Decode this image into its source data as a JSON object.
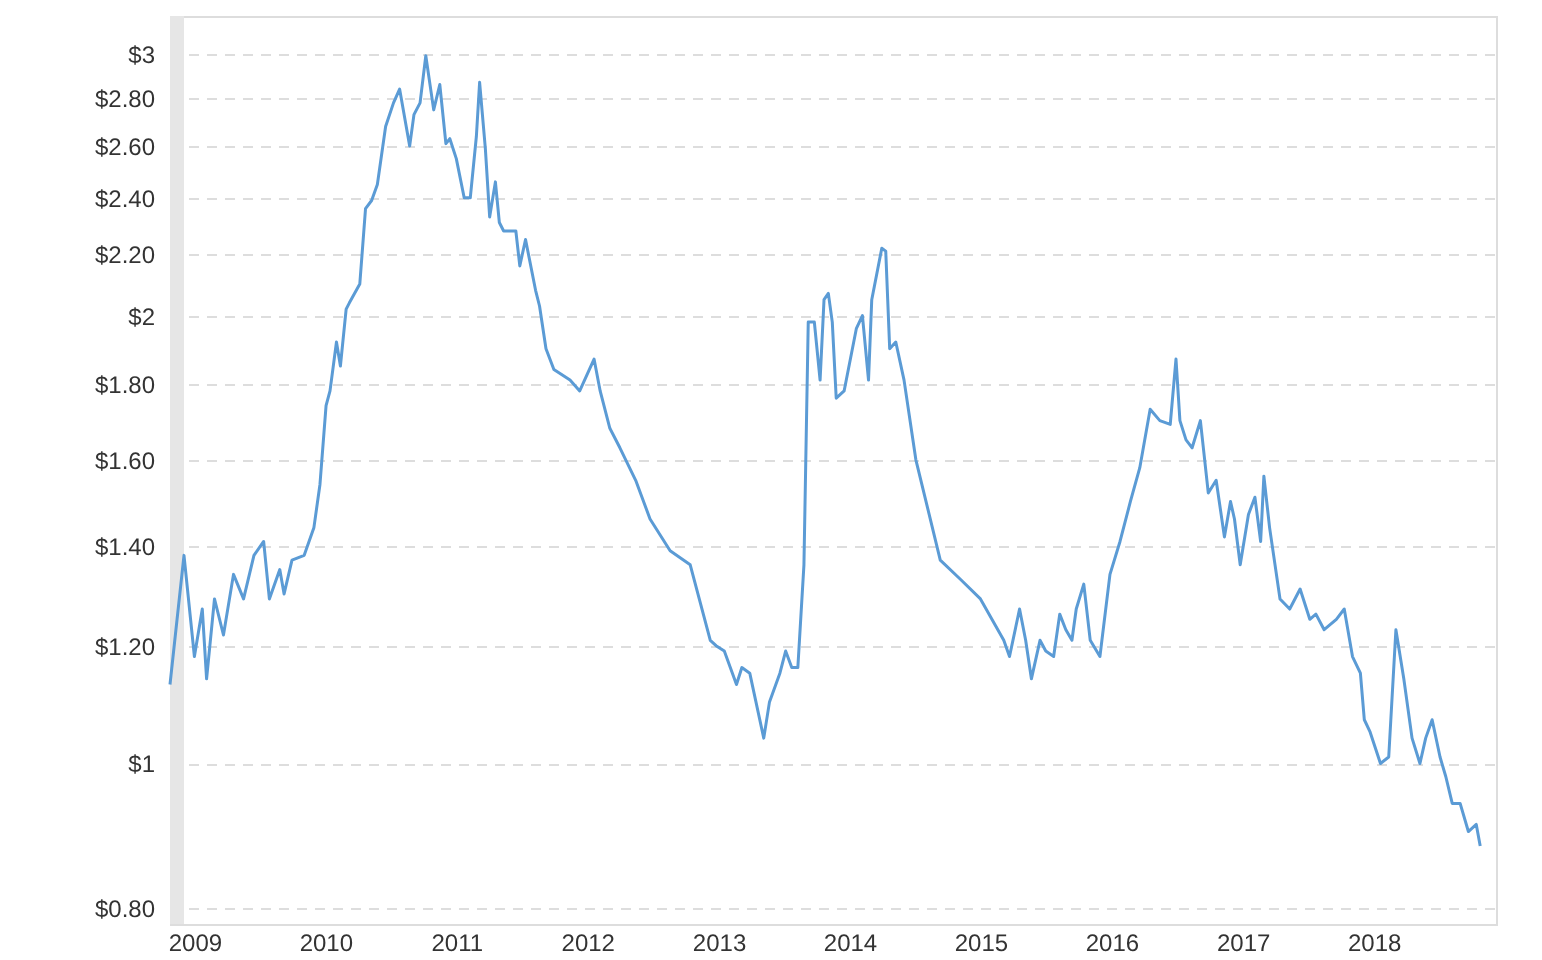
{
  "chart_data": {
    "type": "line",
    "grid": "y",
    "log": "y",
    "line_style": "solid",
    "marker": "none",
    "xlim": [
      "2008-10-25",
      "2018-12-08"
    ],
    "xticks": [
      {
        "value": "2009",
        "label": "2009"
      },
      {
        "value": "2010",
        "label": "2010"
      },
      {
        "value": "2011",
        "label": "2011"
      },
      {
        "value": "2012",
        "label": "2012"
      },
      {
        "value": "2013",
        "label": "2013"
      },
      {
        "value": "2014",
        "label": "2014"
      },
      {
        "value": "2015",
        "label": "2015"
      },
      {
        "value": "2016",
        "label": "2016"
      },
      {
        "value": "2017",
        "label": "2017"
      },
      {
        "value": "2018",
        "label": "2018"
      }
    ],
    "ylim": [
      0.78,
      3.18
    ],
    "yticks": [
      {
        "value": 0.8,
        "label": "$0.80"
      },
      {
        "value": 1,
        "label": "$1"
      },
      {
        "value": 1.2,
        "label": "$1.20"
      },
      {
        "value": 1.4,
        "label": "$1.40"
      },
      {
        "value": 1.6,
        "label": "$1.60"
      },
      {
        "value": 1.8,
        "label": "$1.80"
      },
      {
        "value": 2,
        "label": "$2"
      },
      {
        "value": 2.2,
        "label": "$2.20"
      },
      {
        "value": 2.4,
        "label": "$2.40"
      },
      {
        "value": 2.6,
        "label": "$2.60"
      },
      {
        "value": 2.8,
        "label": "$2.80"
      },
      {
        "value": 3,
        "label": "$3"
      }
    ],
    "bands": [
      {
        "axis": "x",
        "from": "2008-10-25",
        "to": "2008-12-03",
        "color": "#e6e6e6"
      }
    ],
    "x": [
      "2008-10-25",
      "2008-12-03",
      "2009-01-01",
      "2009-01-23",
      "2009-02-04",
      "2009-02-26",
      "2009-03-23",
      "2009-04-20",
      "2009-05-18",
      "2009-06-16",
      "2009-07-13",
      "2009-07-29",
      "2009-08-27",
      "2009-09-08",
      "2009-09-30",
      "2009-11-03",
      "2009-11-30",
      "2009-12-17",
      "2010-01-03",
      "2010-01-14",
      "2010-02-01",
      "2010-02-12",
      "2010-02-28",
      "2010-03-09",
      "2010-04-07",
      "2010-04-23",
      "2010-05-10",
      "2010-05-26",
      "2010-06-18",
      "2010-07-10",
      "2010-07-27",
      "2010-08-24",
      "2010-09-05",
      "2010-09-22",
      "2010-10-08",
      "2010-10-30",
      "2010-11-16",
      "2010-12-03",
      "2010-12-14",
      "2011-01-01",
      "2011-01-23",
      "2011-02-09",
      "2011-02-26",
      "2011-03-07",
      "2011-03-23",
      "2011-04-04",
      "2011-04-20",
      "2011-05-01",
      "2011-05-13",
      "2011-06-16",
      "2011-06-27",
      "2011-07-13",
      "2011-08-10",
      "2011-08-21",
      "2011-09-08",
      "2011-09-30",
      "2011-11-14",
      "2011-12-11",
      "2012-01-20",
      "2012-02-06",
      "2012-03-04",
      "2012-04-01",
      "2012-05-15",
      "2012-06-24",
      "2012-08-19",
      "2012-10-14",
      "2012-12-09",
      "2012-12-25",
      "2013-01-17",
      "2013-02-20",
      "2013-03-07",
      "2013-03-29",
      "2013-05-07",
      "2013-05-23",
      "2013-06-21",
      "2013-07-07",
      "2013-07-24",
      "2013-08-10",
      "2013-08-27",
      "2013-09-08",
      "2013-09-25",
      "2013-10-11",
      "2013-10-22",
      "2013-11-03",
      "2013-11-14",
      "2013-11-25",
      "2013-12-17",
      "2014-01-20",
      "2014-02-06",
      "2014-02-23",
      "2014-03-04",
      "2014-04-01",
      "2014-04-12",
      "2014-04-23",
      "2014-05-10",
      "2014-06-02",
      "2014-07-05",
      "2014-09-11",
      "2014-11-06",
      "2015-01-01",
      "2015-03-07",
      "2015-03-23",
      "2015-04-20",
      "2015-05-07",
      "2015-05-23",
      "2015-06-16",
      "2015-07-02",
      "2015-07-24",
      "2015-08-10",
      "2015-08-27",
      "2015-09-13",
      "2015-09-25",
      "2015-10-16",
      "2015-11-03",
      "2015-11-30",
      "2015-12-28",
      "2016-01-25",
      "2016-02-23",
      "2016-03-20",
      "2016-04-18",
      "2016-05-15",
      "2016-06-13",
      "2016-06-29",
      "2016-07-10",
      "2016-07-27",
      "2016-08-13",
      "2016-09-05",
      "2016-09-27",
      "2016-10-19",
      "2016-11-11",
      "2016-11-28",
      "2016-12-09",
      "2016-12-25",
      "2017-01-17",
      "2017-02-04",
      "2017-02-20",
      "2017-03-01",
      "2017-03-17",
      "2017-04-15",
      "2017-05-12",
      "2017-06-10",
      "2017-07-07",
      "2017-07-24",
      "2017-08-16",
      "2017-09-19",
      "2017-10-11",
      "2017-11-03",
      "2017-11-25",
      "2017-12-06",
      "2017-12-22",
      "2018-01-20",
      "2018-02-12",
      "2018-03-04",
      "2018-03-26",
      "2018-04-18",
      "2018-05-10",
      "2018-05-26",
      "2018-06-13",
      "2018-07-05",
      "2018-07-21",
      "2018-08-08",
      "2018-08-30",
      "2018-09-22",
      "2018-10-14",
      "2018-10-25"
    ],
    "series": [
      {
        "color": "#5b9bd5",
        "values": [
          1.13,
          1.38,
          1.18,
          1.27,
          1.14,
          1.29,
          1.22,
          1.34,
          1.29,
          1.38,
          1.41,
          1.29,
          1.35,
          1.3,
          1.37,
          1.38,
          1.44,
          1.54,
          1.74,
          1.78,
          1.92,
          1.85,
          2.02,
          2.04,
          2.1,
          2.36,
          2.39,
          2.45,
          2.68,
          2.78,
          2.84,
          2.6,
          2.73,
          2.78,
          2.99,
          2.75,
          2.86,
          2.61,
          2.63,
          2.55,
          2.4,
          2.4,
          2.64,
          2.87,
          2.59,
          2.33,
          2.46,
          2.31,
          2.28,
          2.28,
          2.16,
          2.25,
          2.08,
          2.03,
          1.9,
          1.84,
          1.81,
          1.78,
          1.87,
          1.78,
          1.68,
          1.63,
          1.55,
          1.46,
          1.39,
          1.36,
          1.21,
          1.2,
          1.19,
          1.13,
          1.16,
          1.15,
          1.04,
          1.1,
          1.15,
          1.19,
          1.16,
          1.16,
          1.36,
          1.98,
          1.98,
          1.81,
          2.05,
          2.07,
          1.98,
          1.76,
          1.78,
          1.96,
          2.0,
          1.81,
          2.05,
          2.22,
          2.21,
          1.9,
          1.92,
          1.81,
          1.6,
          1.37,
          1.33,
          1.29,
          1.21,
          1.18,
          1.27,
          1.21,
          1.14,
          1.21,
          1.19,
          1.18,
          1.26,
          1.23,
          1.21,
          1.27,
          1.32,
          1.21,
          1.18,
          1.34,
          1.41,
          1.5,
          1.58,
          1.73,
          1.7,
          1.69,
          1.87,
          1.7,
          1.65,
          1.63,
          1.7,
          1.52,
          1.55,
          1.42,
          1.5,
          1.46,
          1.36,
          1.47,
          1.51,
          1.41,
          1.56,
          1.44,
          1.29,
          1.27,
          1.31,
          1.25,
          1.26,
          1.23,
          1.25,
          1.27,
          1.18,
          1.15,
          1.07,
          1.05,
          1.0,
          1.01,
          1.23,
          1.14,
          1.04,
          1.0,
          1.04,
          1.07,
          1.01,
          0.98,
          0.94,
          0.94,
          0.9,
          0.91,
          0.88
        ]
      }
    ]
  }
}
